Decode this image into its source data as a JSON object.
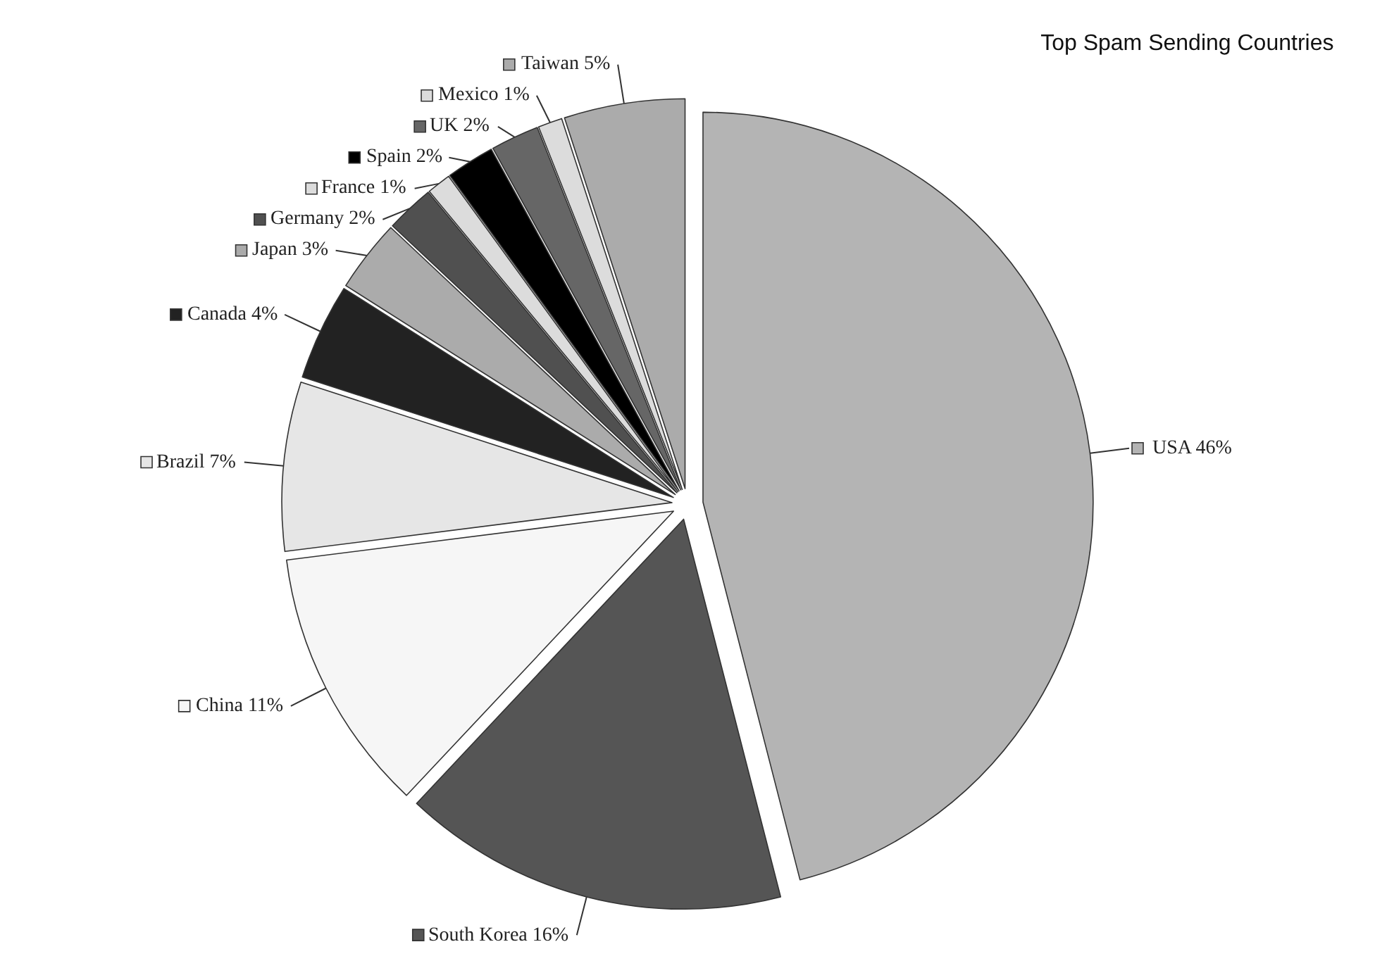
{
  "chart_data": {
    "type": "pie",
    "title": "Top Spam Sending Countries",
    "categories": [
      "USA",
      "South Korea",
      "China",
      "Brazil",
      "Canada",
      "Japan",
      "Germany",
      "France",
      "Spain",
      "UK",
      "Mexico",
      "Taiwan"
    ],
    "values": [
      46,
      16,
      11,
      7,
      4,
      3,
      2,
      1,
      2,
      2,
      1,
      5
    ],
    "value_labels": [
      "46%",
      "16%",
      "11%",
      "7%",
      "4%",
      "3%",
      "2%",
      "1%",
      "2%",
      "2%",
      "1%",
      "5%"
    ],
    "colors": [
      "#b4b4b4",
      "#555555",
      "#f6f6f6",
      "#e6e6e6",
      "#222222",
      "#ababab",
      "#505050",
      "#dcdcdc",
      "#000000",
      "#666666",
      "#dcdcdc",
      "#ababab"
    ],
    "legend": "left"
  }
}
